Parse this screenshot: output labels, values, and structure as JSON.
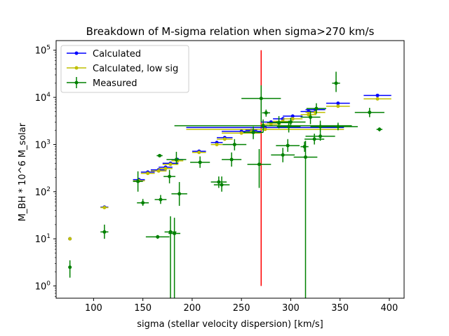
{
  "chart_data": {
    "type": "scatter",
    "title": "Breakdown of M-sigma relation when sigma>270 km/s",
    "xlabel": "sigma (stellar velocity dispersion) [km/s]",
    "ylabel": "M_BH * 10^6 M_solar",
    "xlim": [
      62,
      415
    ],
    "ylim": [
      0.55,
      160000
    ],
    "yscale": "log",
    "xticks": [
      100,
      150,
      200,
      250,
      300,
      350,
      400
    ],
    "yticks": [
      1,
      10,
      100,
      1000,
      10000,
      100000
    ],
    "ytick_labels": [
      {
        "base": "10",
        "exp": "0"
      },
      {
        "base": "10",
        "exp": "1"
      },
      {
        "base": "10",
        "exp": "2"
      },
      {
        "base": "10",
        "exp": "3"
      },
      {
        "base": "10",
        "exp": "4"
      },
      {
        "base": "10",
        "exp": "5"
      }
    ],
    "grid": false,
    "legend_position": "upper-left",
    "vline": {
      "x": 270,
      "y_range": [
        1,
        100000
      ],
      "color": "#ff0000"
    },
    "series": [
      {
        "name": "Calculated",
        "color": "#0000ff",
        "points": [
          {
            "x": 76,
            "y": 10,
            "xerr": 0
          },
          {
            "x": 111,
            "y": 47,
            "xerr": 4
          },
          {
            "x": 146,
            "y": 180,
            "xerr": 6
          },
          {
            "x": 155,
            "y": 260,
            "xerr": 7
          },
          {
            "x": 166,
            "y": 290,
            "xerr": 8
          },
          {
            "x": 173,
            "y": 330,
            "xerr": 7
          },
          {
            "x": 178,
            "y": 400,
            "xerr": 8
          },
          {
            "x": 185,
            "y": 480,
            "xerr": 6
          },
          {
            "x": 207,
            "y": 720,
            "xerr": 7
          },
          {
            "x": 225,
            "y": 1100,
            "xerr": 6
          },
          {
            "x": 233,
            "y": 1400,
            "xerr": 8
          },
          {
            "x": 250,
            "y": 1900,
            "xerr": 20
          },
          {
            "x": 260,
            "y": 2000,
            "xerr": 6
          },
          {
            "x": 274,
            "y": 2300,
            "xerr": 80
          },
          {
            "x": 280,
            "y": 3000,
            "xerr": 10
          },
          {
            "x": 292,
            "y": 3500,
            "xerr": 10
          },
          {
            "x": 302,
            "y": 4000,
            "xerr": 10
          },
          {
            "x": 318,
            "y": 5000,
            "xerr": 8
          },
          {
            "x": 325,
            "y": 5500,
            "xerr": 10
          },
          {
            "x": 348,
            "y": 7500,
            "xerr": 12
          },
          {
            "x": 388,
            "y": 11000,
            "xerr": 14
          }
        ]
      },
      {
        "name": "Calculated, low sig",
        "color": "#bfbf00",
        "points": [
          {
            "x": 76,
            "y": 10,
            "xerr": 0
          },
          {
            "x": 111,
            "y": 46,
            "xerr": 4
          },
          {
            "x": 146,
            "y": 170,
            "xerr": 6
          },
          {
            "x": 155,
            "y": 245,
            "xerr": 7
          },
          {
            "x": 166,
            "y": 275,
            "xerr": 8
          },
          {
            "x": 173,
            "y": 310,
            "xerr": 7
          },
          {
            "x": 178,
            "y": 380,
            "xerr": 8
          },
          {
            "x": 185,
            "y": 450,
            "xerr": 6
          },
          {
            "x": 207,
            "y": 680,
            "xerr": 7
          },
          {
            "x": 225,
            "y": 1000,
            "xerr": 6
          },
          {
            "x": 233,
            "y": 1300,
            "xerr": 8
          },
          {
            "x": 250,
            "y": 1750,
            "xerr": 20
          },
          {
            "x": 260,
            "y": 1850,
            "xerr": 6
          },
          {
            "x": 274,
            "y": 2100,
            "xerr": 80
          },
          {
            "x": 280,
            "y": 2700,
            "xerr": 10
          },
          {
            "x": 292,
            "y": 3100,
            "xerr": 10
          },
          {
            "x": 302,
            "y": 3500,
            "xerr": 10
          },
          {
            "x": 318,
            "y": 4300,
            "xerr": 8
          },
          {
            "x": 325,
            "y": 4800,
            "xerr": 10
          },
          {
            "x": 348,
            "y": 6500,
            "xerr": 12
          },
          {
            "x": 388,
            "y": 9300,
            "xerr": 14
          }
        ]
      },
      {
        "name": "Measured",
        "color": "#008000",
        "points": [
          {
            "x": 76,
            "y": 2.5,
            "xerr": 0,
            "ylo": 1.5,
            "yhi": 3.5
          },
          {
            "x": 111,
            "y": 14,
            "xerr": 4,
            "ylo": 10,
            "yhi": 20
          },
          {
            "x": 145,
            "y": 165,
            "xerr": 5,
            "ylo": 100,
            "yhi": 270
          },
          {
            "x": 150,
            "y": 58,
            "xerr": 6,
            "ylo": 50,
            "yhi": 70
          },
          {
            "x": 165,
            "y": 11,
            "xerr": 12,
            "ylo": 10,
            "yhi": 12
          },
          {
            "x": 167,
            "y": 580,
            "xerr": 3,
            "ylo": 560,
            "yhi": 600
          },
          {
            "x": 168,
            "y": 68,
            "xerr": 6,
            "ylo": 55,
            "yhi": 85
          },
          {
            "x": 177,
            "y": 210,
            "xerr": 6,
            "ylo": 150,
            "yhi": 290
          },
          {
            "x": 178,
            "y": 14,
            "xerr": 6,
            "ylo": 0.3,
            "yhi": 30
          },
          {
            "x": 182,
            "y": 13,
            "xerr": 6,
            "ylo": 0.3,
            "yhi": 28
          },
          {
            "x": 184,
            "y": 480,
            "xerr": 10,
            "ylo": 380,
            "yhi": 700
          },
          {
            "x": 187,
            "y": 90,
            "xerr": 8,
            "ylo": 50,
            "yhi": 160
          },
          {
            "x": 208,
            "y": 420,
            "xerr": 10,
            "ylo": 320,
            "yhi": 560
          },
          {
            "x": 227,
            "y": 160,
            "xerr": 8,
            "ylo": 120,
            "yhi": 210
          },
          {
            "x": 230,
            "y": 140,
            "xerr": 8,
            "ylo": 100,
            "yhi": 210
          },
          {
            "x": 240,
            "y": 480,
            "xerr": 10,
            "ylo": 340,
            "yhi": 680
          },
          {
            "x": 243,
            "y": 1000,
            "xerr": 12,
            "ylo": 750,
            "yhi": 1300
          },
          {
            "x": 262,
            "y": 1800,
            "xerr": 10,
            "ylo": 1300,
            "yhi": 2400
          },
          {
            "x": 268,
            "y": 380,
            "xerr": 12,
            "ylo": 120,
            "yhi": 800
          },
          {
            "x": 270,
            "y": 9500,
            "xerr": 20,
            "ylo": 3000,
            "yhi": 18000
          },
          {
            "x": 272,
            "y": 2500,
            "xerr": 90,
            "ylo": 1800,
            "yhi": 3400
          },
          {
            "x": 275,
            "y": 4700,
            "xerr": 4,
            "ylo": 3900,
            "yhi": 5500
          },
          {
            "x": 288,
            "y": 2900,
            "xerr": 12,
            "ylo": 2200,
            "yhi": 4000
          },
          {
            "x": 292,
            "y": 600,
            "xerr": 12,
            "ylo": 420,
            "yhi": 850
          },
          {
            "x": 297,
            "y": 950,
            "xerr": 12,
            "ylo": 700,
            "yhi": 1300
          },
          {
            "x": 298,
            "y": 2400,
            "xerr": 12,
            "ylo": 1800,
            "yhi": 3200
          },
          {
            "x": 300,
            "y": 3000,
            "xerr": 15,
            "ylo": 2400,
            "yhi": 3700
          },
          {
            "x": 314,
            "y": 900,
            "xerr": 4,
            "ylo": 700,
            "yhi": 1150
          },
          {
            "x": 315,
            "y": 540,
            "xerr": 12,
            "ylo": 0.3,
            "yhi": 1200
          },
          {
            "x": 320,
            "y": 3800,
            "xerr": 10,
            "ylo": 2700,
            "yhi": 5200
          },
          {
            "x": 324,
            "y": 1300,
            "xerr": 10,
            "ylo": 1000,
            "yhi": 1700
          },
          {
            "x": 326,
            "y": 5800,
            "xerr": 10,
            "ylo": 4500,
            "yhi": 7500
          },
          {
            "x": 330,
            "y": 2400,
            "xerr": 10,
            "ylo": 1800,
            "yhi": 3200
          },
          {
            "x": 330,
            "y": 1500,
            "xerr": 15,
            "ylo": 1200,
            "yhi": 1800
          },
          {
            "x": 346,
            "y": 20000,
            "xerr": 4,
            "ylo": 13000,
            "yhi": 35000
          },
          {
            "x": 348,
            "y": 2400,
            "xerr": 20,
            "ylo": 2000,
            "yhi": 2900
          },
          {
            "x": 380,
            "y": 4800,
            "xerr": 15,
            "ylo": 3800,
            "yhi": 6000
          },
          {
            "x": 390,
            "y": 2100,
            "xerr": 3,
            "ylo": 1900,
            "yhi": 2300
          }
        ]
      }
    ]
  }
}
